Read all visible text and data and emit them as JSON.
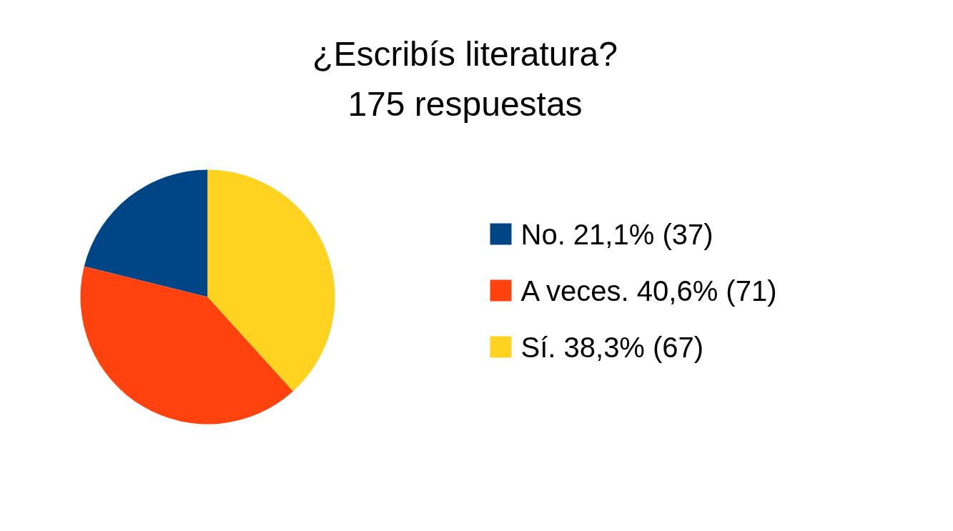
{
  "chart_data": {
    "type": "pie",
    "title": "¿Escribís literatura?",
    "subtitle": "175 respuestas",
    "categories": [
      "No. 21,1% (37)",
      "A veces. 40,6% (71)",
      "Sí. 38,3% (67)"
    ],
    "values": [
      37,
      71,
      67
    ],
    "colors": [
      "#004586",
      "#ff420e",
      "#ffd320"
    ],
    "legend": "right"
  }
}
